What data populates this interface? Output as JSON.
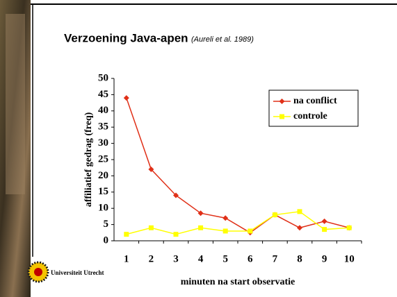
{
  "slide": {
    "title": "Verzoening Java-apen",
    "subtitle": "(Aureli et al. 1989)",
    "logo_text": "Universiteit Utrecht"
  },
  "chart_data": {
    "type": "line",
    "categories": [
      "1",
      "2",
      "3",
      "4",
      "5",
      "6",
      "7",
      "8",
      "9",
      "10"
    ],
    "series": [
      {
        "name": "na conflict",
        "color": "#e03018",
        "marker": "diamond",
        "values": [
          44,
          22,
          14,
          8.5,
          7,
          2.5,
          8,
          4,
          6,
          4
        ]
      },
      {
        "name": "controle",
        "color": "#ffff00",
        "marker": "square",
        "values": [
          2,
          4,
          2,
          4,
          3,
          3,
          8,
          9,
          3.5,
          4
        ]
      }
    ],
    "ylabel": "affiliatief gedrag (freq)",
    "xlabel": "minuten na start observatie",
    "ylim": [
      0,
      50
    ],
    "yticks": [
      0,
      5,
      10,
      15,
      20,
      25,
      30,
      35,
      40,
      45,
      50
    ],
    "legend": "upper right",
    "grid": false
  }
}
